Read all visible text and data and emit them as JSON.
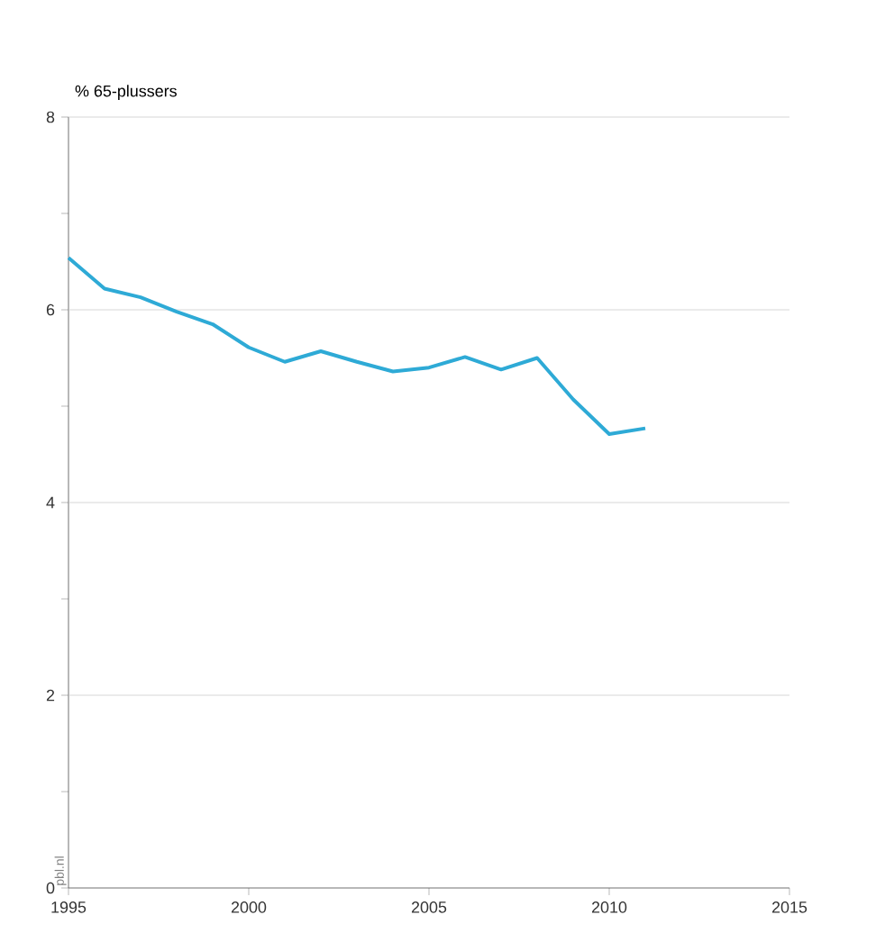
{
  "chart_data": {
    "type": "line",
    "ylabel": "% 65-plussers",
    "annotations": [
      "pbl.nl"
    ],
    "x": [
      1995,
      1996,
      1997,
      1998,
      1999,
      2000,
      2001,
      2002,
      2003,
      2004,
      2005,
      2006,
      2007,
      2008,
      2009,
      2010,
      2011
    ],
    "series": [
      {
        "color": "#2eaad6",
        "values": [
          6.54,
          6.22,
          6.13,
          5.98,
          5.85,
          5.61,
          5.46,
          5.57,
          5.46,
          5.36,
          5.4,
          5.51,
          5.38,
          5.5,
          5.07,
          4.71,
          4.77
        ]
      }
    ],
    "xlim": [
      1995,
      2015
    ],
    "xticks": [
      1995,
      2000,
      2005,
      2010,
      2015
    ],
    "ylim": [
      0,
      8
    ],
    "yticks": [
      0,
      {
        "value": 1,
        "label": null
      },
      2,
      {
        "value": 3,
        "label": null
      },
      4,
      {
        "value": 5,
        "label": null
      },
      6,
      {
        "value": 7,
        "label": null
      },
      8
    ],
    "grid": "y",
    "line_style": "solid",
    "marker": "none"
  }
}
